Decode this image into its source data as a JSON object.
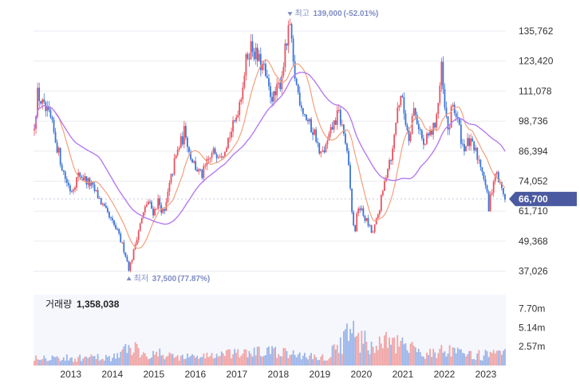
{
  "chart_data": [
    {
      "type": "candlestick",
      "y_ticks": [
        "135,762",
        "123,420",
        "111,078",
        "98,736",
        "86,394",
        "74,052",
        "61,710",
        "49,368",
        "37,026"
      ],
      "y_tick_values": [
        135762,
        123420,
        111078,
        98736,
        86394,
        74052,
        61710,
        49368,
        37026
      ],
      "ylim": [
        30000,
        142000
      ],
      "x_ticks": [
        "2013",
        "2014",
        "2015",
        "2016",
        "2017",
        "2018",
        "2019",
        "2020",
        "2021",
        "2022",
        "2023"
      ],
      "x_tick_values": [
        2013.0,
        2014.0,
        2015.0,
        2016.0,
        2017.0,
        2018.0,
        2019.0,
        2020.0,
        2021.0,
        2022.0,
        2023.0
      ],
      "xlim": [
        2012.55,
        2023.93
      ],
      "grid": true,
      "high": {
        "date": 2018.73,
        "value": 139000,
        "label_prefix": "최고",
        "label_value": "139,000",
        "label_change": "(-52.01%)"
      },
      "low": {
        "date": 2014.85,
        "value": 37500,
        "label_prefix": "최저",
        "label_value": "37,500",
        "label_change": "(77.87%)"
      },
      "current": {
        "value": 66700,
        "label": "66,700"
      },
      "price_path": [
        [
          2012.55,
          95000
        ],
        [
          2012.65,
          110000
        ],
        [
          2012.8,
          104000
        ],
        [
          2012.95,
          100000
        ],
        [
          2013.15,
          86000
        ],
        [
          2013.3,
          76000
        ],
        [
          2013.45,
          70000
        ],
        [
          2013.65,
          77000
        ],
        [
          2013.9,
          73000
        ],
        [
          2014.1,
          68000
        ],
        [
          2014.3,
          61000
        ],
        [
          2014.55,
          54000
        ],
        [
          2014.75,
          45000
        ],
        [
          2014.85,
          38000
        ],
        [
          2014.95,
          44000
        ],
        [
          2015.05,
          52000
        ],
        [
          2015.15,
          58000
        ],
        [
          2015.3,
          66000
        ],
        [
          2015.45,
          61000
        ],
        [
          2015.55,
          66000
        ],
        [
          2015.7,
          60000
        ],
        [
          2015.8,
          70000
        ],
        [
          2015.95,
          82000
        ],
        [
          2016.05,
          88000
        ],
        [
          2016.15,
          92000
        ],
        [
          2016.2,
          96000
        ],
        [
          2016.3,
          86000
        ],
        [
          2016.45,
          80000
        ],
        [
          2016.6,
          76000
        ],
        [
          2016.75,
          82000
        ],
        [
          2016.9,
          86000
        ],
        [
          2017.1,
          86000
        ],
        [
          2017.25,
          92000
        ],
        [
          2017.4,
          98000
        ],
        [
          2017.55,
          110000
        ],
        [
          2017.7,
          126000
        ],
        [
          2017.8,
          130000
        ],
        [
          2017.95,
          124000
        ],
        [
          2018.1,
          120000
        ],
        [
          2018.2,
          112000
        ],
        [
          2018.35,
          108000
        ],
        [
          2018.5,
          115000
        ],
        [
          2018.62,
          128000
        ],
        [
          2018.73,
          138000
        ],
        [
          2018.8,
          122000
        ],
        [
          2018.9,
          112000
        ],
        [
          2019.05,
          103000
        ],
        [
          2019.2,
          97000
        ],
        [
          2019.35,
          93000
        ],
        [
          2019.45,
          84000
        ],
        [
          2019.6,
          88000
        ],
        [
          2019.75,
          96000
        ],
        [
          2019.9,
          102000
        ],
        [
          2020.05,
          92000
        ],
        [
          2020.15,
          78000
        ],
        [
          2020.22,
          62000
        ],
        [
          2020.28,
          52000
        ],
        [
          2020.38,
          64000
        ],
        [
          2020.5,
          60000
        ],
        [
          2020.62,
          56000
        ],
        [
          2020.72,
          52000
        ],
        [
          2020.82,
          58000
        ],
        [
          2020.95,
          68000
        ],
        [
          2021.1,
          82000
        ],
        [
          2021.2,
          86000
        ],
        [
          2021.3,
          102000
        ],
        [
          2021.4,
          110000
        ],
        [
          2021.5,
          100000
        ],
        [
          2021.6,
          92000
        ],
        [
          2021.7,
          104000
        ],
        [
          2021.85,
          96000
        ],
        [
          2021.95,
          88000
        ],
        [
          2022.05,
          92000
        ],
        [
          2022.2,
          96000
        ],
        [
          2022.3,
          106000
        ],
        [
          2022.38,
          120000
        ],
        [
          2022.45,
          104000
        ],
        [
          2022.55,
          94000
        ],
        [
          2022.65,
          106000
        ],
        [
          2022.78,
          98000
        ],
        [
          2022.9,
          88000
        ],
        [
          2023.05,
          90000
        ],
        [
          2023.2,
          86000
        ],
        [
          2023.35,
          80000
        ],
        [
          2023.45,
          72000
        ],
        [
          2023.52,
          62000
        ],
        [
          2023.58,
          70000
        ],
        [
          2023.68,
          78000
        ],
        [
          2023.8,
          72000
        ],
        [
          2023.93,
          66700
        ]
      ],
      "colors": {
        "up": "#e8525f",
        "down": "#3d74d6",
        "ma_short": "#f4a07c",
        "ma_long": "#b57bf0",
        "grid": "#e9ebf0",
        "annotation": "#7f8cc2",
        "badge": "#4b5aa0"
      },
      "legend": "none"
    },
    {
      "type": "bar",
      "title": "거래량",
      "current_volume": "1,358,038",
      "y_ticks": [
        "7.70m",
        "5.14m",
        "2.57m"
      ],
      "y_tick_values": [
        7.7,
        5.14,
        2.57
      ],
      "ylim": [
        0,
        9.6
      ],
      "y_unit": "m",
      "x_ticks": [
        "2013",
        "2014",
        "2015",
        "2016",
        "2017",
        "2018",
        "2019",
        "2020",
        "2021",
        "2022",
        "2023"
      ],
      "xlim": [
        2012.55,
        2023.93
      ],
      "volume_profile": [
        [
          2012.55,
          1.2
        ],
        [
          2013.5,
          0.9
        ],
        [
          2014.5,
          1.1
        ],
        [
          2014.9,
          2.4
        ],
        [
          2015.3,
          1.6
        ],
        [
          2016.2,
          1.1
        ],
        [
          2017.6,
          1.5
        ],
        [
          2018.2,
          1.8
        ],
        [
          2018.8,
          1.4
        ],
        [
          2019.6,
          1.0
        ],
        [
          2020.2,
          4.2
        ],
        [
          2020.7,
          2.4
        ],
        [
          2021.0,
          3.0
        ],
        [
          2021.4,
          2.5
        ],
        [
          2022.0,
          1.6
        ],
        [
          2022.4,
          1.9
        ],
        [
          2023.0,
          1.3
        ],
        [
          2023.93,
          1.4
        ]
      ],
      "colors": {
        "up": "#f1a4a4",
        "down": "#9bb4e8",
        "panel_bg": "#f5f7fd"
      }
    }
  ]
}
